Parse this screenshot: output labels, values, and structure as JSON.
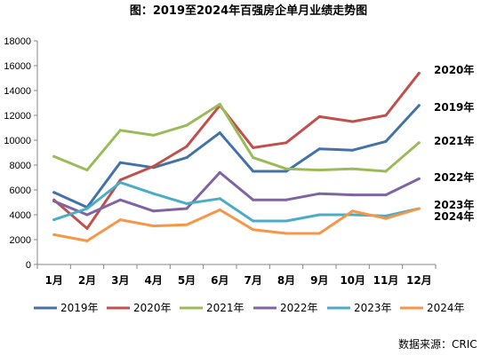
{
  "source_label": "数据来源：CRIC",
  "chart_data": {
    "type": "line",
    "title": "图：2019至2024年百强房企单月业绩走势图",
    "xlabel": "",
    "ylabel": "",
    "categories": [
      "1月",
      "2月",
      "3月",
      "4月",
      "5月",
      "6月",
      "7月",
      "8月",
      "9月",
      "10月",
      "11月",
      "12月"
    ],
    "ylim": [
      0,
      18000
    ],
    "yticks": [
      0,
      2000,
      4000,
      6000,
      8000,
      10000,
      12000,
      14000,
      16000,
      18000
    ],
    "grid": false,
    "legend_position": "bottom",
    "series": [
      {
        "name": "2019年",
        "color": "#4472A8",
        "values": [
          5800,
          4600,
          8200,
          7800,
          8600,
          10600,
          7500,
          7500,
          9300,
          9200,
          9900,
          12800
        ]
      },
      {
        "name": "2020年",
        "color": "#C0504D",
        "values": [
          5200,
          2900,
          6800,
          7900,
          9500,
          12800,
          9400,
          9800,
          11900,
          11500,
          12000,
          15400
        ]
      },
      {
        "name": "2021年",
        "color": "#9BBB59",
        "values": [
          8700,
          7600,
          10800,
          10400,
          11200,
          12900,
          8600,
          7700,
          7600,
          7700,
          7500,
          9800
        ]
      },
      {
        "name": "2022年",
        "color": "#8064A2",
        "values": [
          5100,
          4000,
          5200,
          4300,
          4500,
          7400,
          5200,
          5200,
          5700,
          5600,
          5600,
          6900
        ]
      },
      {
        "name": "2023年",
        "color": "#4BACC6",
        "values": [
          3600,
          4500,
          6600,
          5700,
          4900,
          5300,
          3500,
          3500,
          4000,
          4000,
          3900,
          4500
        ]
      },
      {
        "name": "2024年",
        "color": "#F79646",
        "values": [
          2400,
          1900,
          3600,
          3100,
          3200,
          4400,
          2800,
          2500,
          2500,
          4300,
          3700,
          4500
        ]
      }
    ],
    "end_labels": [
      "2020年",
      "2019年",
      "2021年",
      "2022年",
      "2023年",
      "2024年"
    ]
  }
}
